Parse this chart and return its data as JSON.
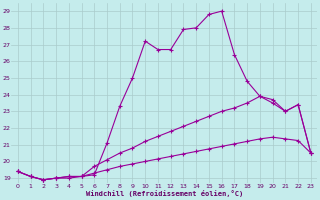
{
  "xlabel": "Windchill (Refroidissement éolien,°C)",
  "xlim": [
    -0.5,
    23.5
  ],
  "ylim": [
    18.7,
    29.5
  ],
  "yticks": [
    19,
    20,
    21,
    22,
    23,
    24,
    25,
    26,
    27,
    28,
    29
  ],
  "xticks": [
    0,
    1,
    2,
    3,
    4,
    5,
    6,
    7,
    8,
    9,
    10,
    11,
    12,
    13,
    14,
    15,
    16,
    17,
    18,
    19,
    20,
    21,
    22,
    23
  ],
  "bg_color": "#c5ecec",
  "grid_color": "#aacccc",
  "line_color": "#990099",
  "line1_x": [
    0,
    1,
    2,
    3,
    4,
    5,
    6,
    7,
    8,
    9,
    10,
    11,
    12,
    13,
    14,
    15,
    16,
    17,
    18,
    19,
    20,
    21,
    22,
    23
  ],
  "line1_y": [
    19.4,
    19.1,
    18.9,
    19.0,
    19.0,
    19.1,
    19.2,
    21.1,
    23.3,
    25.0,
    27.2,
    26.7,
    26.7,
    27.9,
    28.0,
    28.8,
    29.0,
    26.4,
    24.8,
    23.9,
    23.5,
    23.0,
    23.4,
    20.5
  ],
  "line2_x": [
    0,
    1,
    2,
    3,
    4,
    5,
    6,
    7,
    8,
    9,
    10,
    11,
    12,
    13,
    14,
    15,
    16,
    17,
    18,
    19,
    20,
    21,
    22,
    23
  ],
  "line2_y": [
    19.4,
    19.1,
    18.9,
    19.0,
    19.1,
    19.1,
    19.7,
    20.1,
    20.5,
    20.8,
    21.2,
    21.5,
    21.8,
    22.1,
    22.4,
    22.7,
    23.0,
    23.2,
    23.5,
    23.9,
    23.7,
    23.0,
    23.4,
    20.5
  ],
  "line3_x": [
    0,
    1,
    2,
    3,
    4,
    5,
    6,
    7,
    8,
    9,
    10,
    11,
    12,
    13,
    14,
    15,
    16,
    17,
    18,
    19,
    20,
    21,
    22,
    23
  ],
  "line3_y": [
    19.4,
    19.1,
    18.9,
    19.0,
    19.1,
    19.1,
    19.3,
    19.5,
    19.7,
    19.85,
    20.0,
    20.15,
    20.3,
    20.45,
    20.6,
    20.75,
    20.9,
    21.05,
    21.2,
    21.35,
    21.45,
    21.35,
    21.25,
    20.5
  ]
}
